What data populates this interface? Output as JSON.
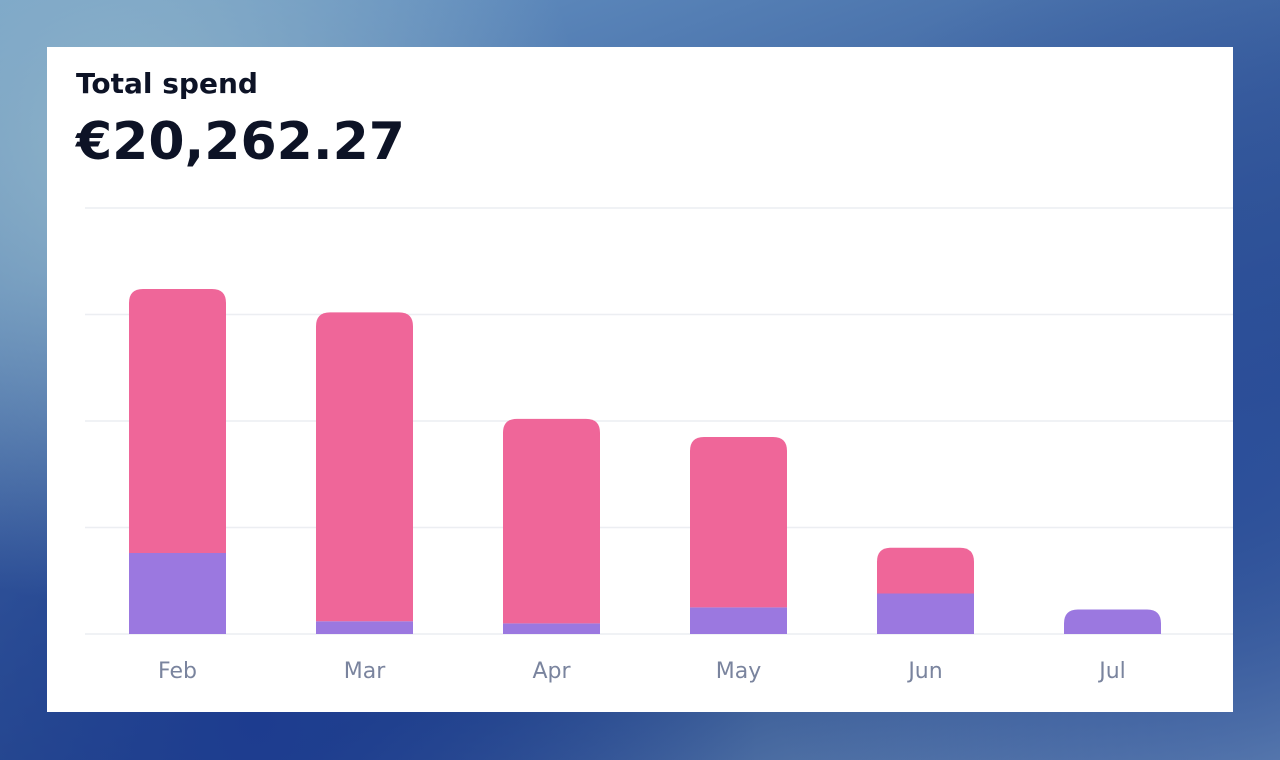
{
  "chart_data": {
    "type": "stacked-bar",
    "title": "Total spend",
    "total": "€20,262.27",
    "categories": [
      "Feb",
      "Mar",
      "Apr",
      "May",
      "Jun",
      "Jul"
    ],
    "series": [
      {
        "color": "#9b78e0",
        "values": [
          0.76,
          0.12,
          0.1,
          0.25,
          0.38,
          0.23
        ]
      },
      {
        "color": "#ef6699",
        "values": [
          2.48,
          2.9,
          1.92,
          1.6,
          0.43,
          0
        ]
      }
    ],
    "ylim": [
      0,
      4
    ],
    "yticks": [
      0,
      1,
      2,
      3,
      4
    ],
    "grid": true
  }
}
